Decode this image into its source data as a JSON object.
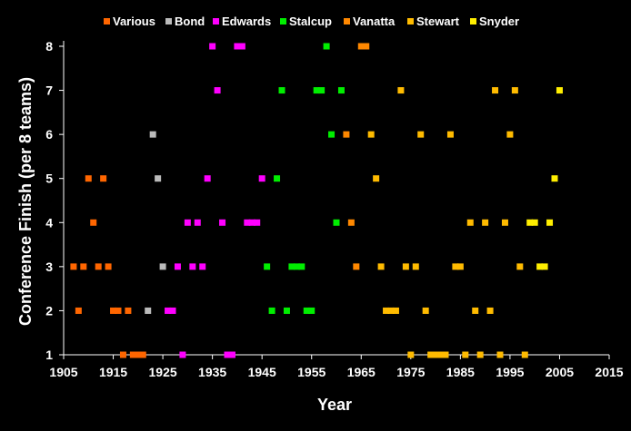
{
  "chart_data": {
    "type": "scatter",
    "title": "",
    "xlabel": "Year",
    "ylabel": "Conference Finish (per 8 teams)",
    "xlim": [
      1905,
      2015
    ],
    "ylim": [
      1,
      8
    ],
    "xticks": [
      1905,
      1915,
      1925,
      1935,
      1945,
      1955,
      1965,
      1975,
      1985,
      1995,
      2005,
      2015
    ],
    "yticks": [
      1,
      2,
      3,
      4,
      5,
      6,
      7,
      8
    ],
    "grid": false,
    "legend_position": "top",
    "series": [
      {
        "name": "Various",
        "color": "#ff6600",
        "points": [
          [
            1907,
            3
          ],
          [
            1908,
            2
          ],
          [
            1909,
            3
          ],
          [
            1910,
            5
          ],
          [
            1911,
            4
          ],
          [
            1912,
            3
          ],
          [
            1913,
            5
          ],
          [
            1914,
            3
          ],
          [
            1915,
            2
          ],
          [
            1916,
            2
          ],
          [
            1917,
            1
          ],
          [
            1918,
            2
          ],
          [
            1919,
            1
          ],
          [
            1920,
            1
          ],
          [
            1921,
            1
          ]
        ]
      },
      {
        "name": "Bond",
        "color": "#bbbbbb",
        "points": [
          [
            1922,
            2
          ],
          [
            1923,
            6
          ],
          [
            1924,
            5
          ],
          [
            1925,
            3
          ]
        ]
      },
      {
        "name": "Edwards",
        "color": "#ff00ff",
        "points": [
          [
            1926,
            2
          ],
          [
            1927,
            2
          ],
          [
            1928,
            3
          ],
          [
            1929,
            1
          ],
          [
            1930,
            4
          ],
          [
            1931,
            3
          ],
          [
            1932,
            4
          ],
          [
            1933,
            3
          ],
          [
            1934,
            5
          ],
          [
            1935,
            8
          ],
          [
            1936,
            7
          ],
          [
            1937,
            4
          ],
          [
            1938,
            1
          ],
          [
            1939,
            1
          ],
          [
            1940,
            8
          ],
          [
            1941,
            8
          ],
          [
            1942,
            4
          ],
          [
            1943,
            4
          ],
          [
            1944,
            4
          ],
          [
            1945,
            5
          ]
        ]
      },
      {
        "name": "Stalcup",
        "color": "#00ee00",
        "points": [
          [
            1946,
            3
          ],
          [
            1947,
            2
          ],
          [
            1948,
            5
          ],
          [
            1949,
            7
          ],
          [
            1950,
            2
          ],
          [
            1951,
            3
          ],
          [
            1952,
            3
          ],
          [
            1953,
            3
          ],
          [
            1954,
            2
          ],
          [
            1955,
            2
          ],
          [
            1956,
            7
          ],
          [
            1957,
            7
          ],
          [
            1958,
            8
          ],
          [
            1959,
            6
          ],
          [
            1960,
            4
          ],
          [
            1961,
            7
          ]
        ]
      },
      {
        "name": "Vanatta",
        "color": "#ff8800",
        "points": [
          [
            1962,
            6
          ],
          [
            1963,
            4
          ],
          [
            1964,
            3
          ],
          [
            1965,
            8
          ],
          [
            1966,
            8
          ]
        ]
      },
      {
        "name": "Stewart",
        "color": "#ffbb00",
        "points": [
          [
            1967,
            6
          ],
          [
            1968,
            5
          ],
          [
            1969,
            3
          ],
          [
            1970,
            2
          ],
          [
            1971,
            2
          ],
          [
            1972,
            2
          ],
          [
            1973,
            7
          ],
          [
            1974,
            3
          ],
          [
            1975,
            1
          ],
          [
            1976,
            3
          ],
          [
            1977,
            6
          ],
          [
            1978,
            2
          ],
          [
            1979,
            1
          ],
          [
            1980,
            1
          ],
          [
            1981,
            1
          ],
          [
            1982,
            1
          ],
          [
            1983,
            6
          ],
          [
            1984,
            3
          ],
          [
            1985,
            3
          ],
          [
            1986,
            1
          ],
          [
            1987,
            4
          ],
          [
            1988,
            2
          ],
          [
            1989,
            1
          ],
          [
            1990,
            4
          ],
          [
            1991,
            2
          ],
          [
            1992,
            7
          ],
          [
            1993,
            1
          ],
          [
            1994,
            4
          ],
          [
            1995,
            6
          ],
          [
            1996,
            7
          ],
          [
            1997,
            3
          ],
          [
            1998,
            1
          ]
        ]
      },
      {
        "name": "Snyder",
        "color": "#ffee00",
        "points": [
          [
            1999,
            4
          ],
          [
            2000,
            4
          ],
          [
            2001,
            3
          ],
          [
            2002,
            3
          ],
          [
            2003,
            4
          ],
          [
            2004,
            5
          ],
          [
            2005,
            7
          ]
        ]
      }
    ]
  }
}
